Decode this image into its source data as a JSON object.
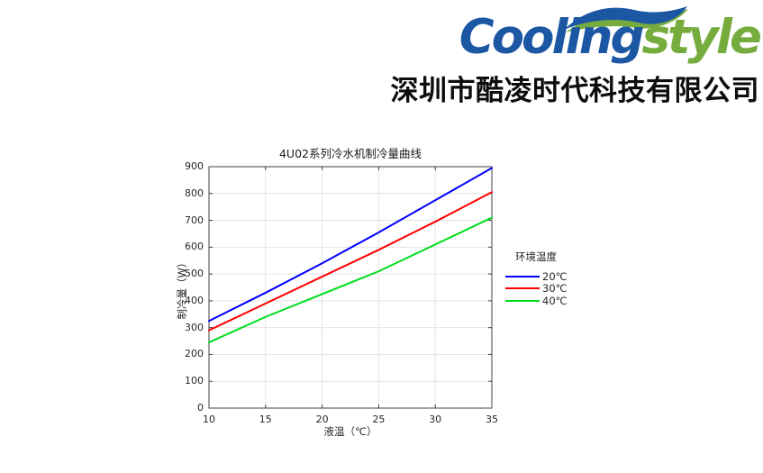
{
  "logo": {
    "brand_primary": "Cooling",
    "brand_secondary": "style",
    "company_name": "深圳市酷凌时代科技有限公司",
    "colors": {
      "blue": "#1c57a4",
      "green": "#76ac3e",
      "text": "#0d0d0d"
    }
  },
  "chart_data": {
    "type": "line",
    "title": "4U02系列冷水机制冷量曲线",
    "xlabel": "液温（℃）",
    "ylabel": "制冷量（W）",
    "xlim": [
      10,
      35
    ],
    "ylim": [
      0,
      900
    ],
    "xticks": [
      10,
      15,
      20,
      25,
      30,
      35
    ],
    "yticks": [
      0,
      100,
      200,
      300,
      400,
      500,
      600,
      700,
      800,
      900
    ],
    "grid": true,
    "legend_title": "环境温度",
    "legend_position": "right-outside",
    "x": [
      10,
      15,
      20,
      25,
      30,
      35
    ],
    "series": [
      {
        "name": "20℃",
        "color": "#0000ff",
        "values": [
          325,
          430,
          540,
          655,
          775,
          895
        ]
      },
      {
        "name": "30℃",
        "color": "#ff0000",
        "values": [
          290,
          390,
          490,
          590,
          695,
          805
        ]
      },
      {
        "name": "40℃",
        "color": "#00dd1c",
        "values": [
          245,
          340,
          425,
          510,
          610,
          710
        ]
      }
    ]
  }
}
